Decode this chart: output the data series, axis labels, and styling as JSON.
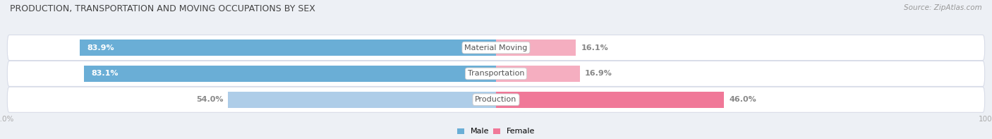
{
  "title": "PRODUCTION, TRANSPORTATION AND MOVING OCCUPATIONS BY SEX",
  "source": "Source: ZipAtlas.com",
  "categories": [
    "Material Moving",
    "Transportation",
    "Production"
  ],
  "male_pct": [
    83.9,
    83.1,
    54.0
  ],
  "female_pct": [
    16.1,
    16.9,
    46.0
  ],
  "male_color_strong": "#6aaed6",
  "male_color_light": "#aecde8",
  "female_color_strong": "#f07898",
  "female_color_light": "#f5aec0",
  "bg_color": "#edf0f5",
  "row_bg_color": "#e8ecf2",
  "row_edge_color": "#d8dce8",
  "title_color": "#444444",
  "source_color": "#999999",
  "legend_male_color": "#6aaed6",
  "legend_female_color": "#f07898",
  "axis_label_color": "#aaaaaa",
  "pct_label_outside_color": "#888888",
  "cat_label_color": "#555555"
}
